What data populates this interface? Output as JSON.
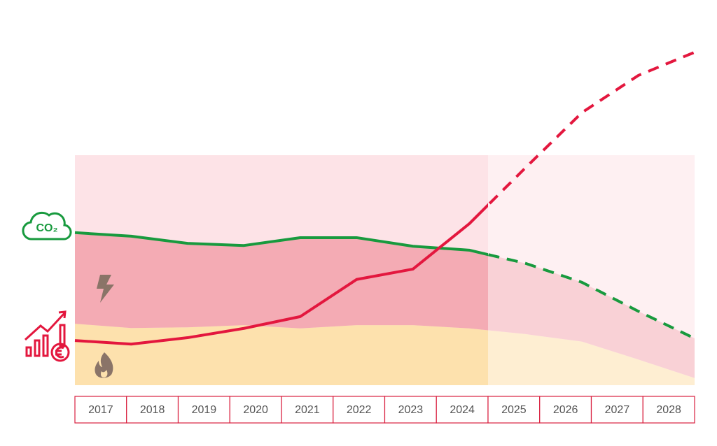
{
  "chart_data": {
    "type": "line",
    "categories": [
      "2017",
      "2018",
      "2019",
      "2020",
      "2021",
      "2022",
      "2023",
      "2024",
      "2025",
      "2026",
      "2027",
      "2028"
    ],
    "forecast_from": "2025",
    "co2_label": "CO₂",
    "ylim": [
      0,
      100
    ],
    "series": [
      {
        "kind": "area",
        "color": "#fde1ad",
        "values": [
          17.2,
          16.0,
          16.2,
          16.8,
          15.9,
          16.8,
          16.8,
          15.9,
          14.3,
          12.2,
          7.2,
          2.0
        ]
      },
      {
        "kind": "line",
        "color": "#189a3e",
        "area_color": "#f4abb4",
        "values": [
          42.7,
          41.7,
          39.7,
          39.1,
          41.3,
          41.3,
          38.9,
          37.8,
          34.1,
          28.8,
          20.7,
          13.1
        ]
      },
      {
        "kind": "line",
        "color": "#e3173e",
        "values": [
          12.5,
          11.5,
          13.3,
          15.9,
          19.2,
          29.6,
          32.5,
          45.2,
          60.9,
          76.3,
          86.7,
          93.2
        ]
      }
    ]
  }
}
